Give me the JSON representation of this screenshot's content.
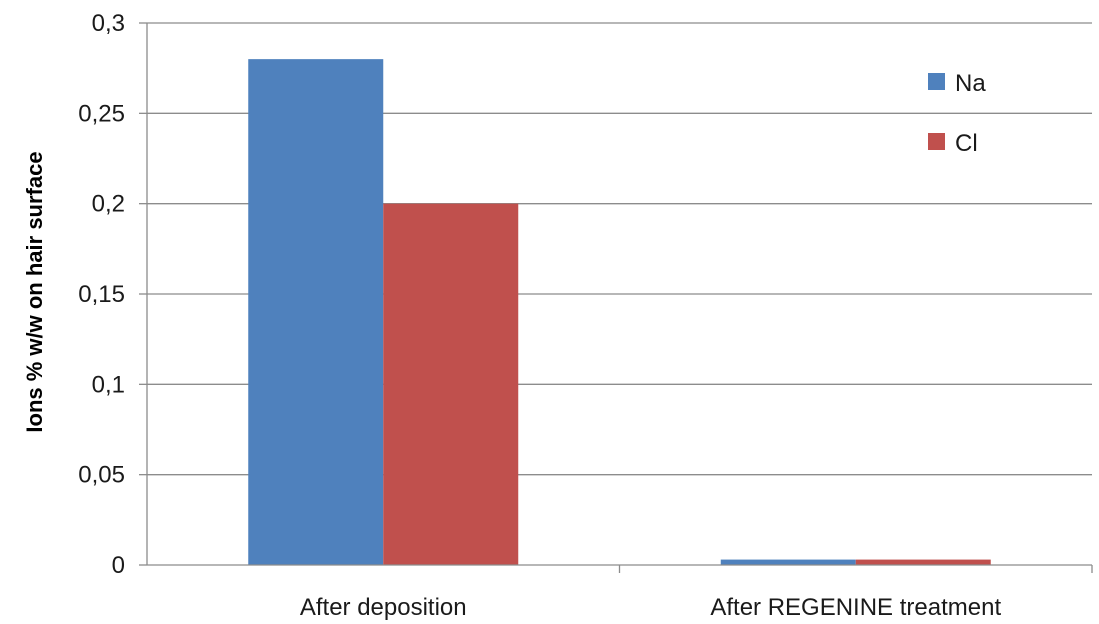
{
  "chart_data": {
    "type": "bar",
    "title": "",
    "xlabel": "",
    "ylabel": "Ions % w/w on hair surface",
    "categories": [
      "After deposition",
      "After REGENINE treatment"
    ],
    "series": [
      {
        "name": "Na",
        "color": "#4f81bd",
        "values": [
          0.28,
          0.003
        ]
      },
      {
        "name": "Cl",
        "color": "#c0504d",
        "values": [
          0.2,
          0.003
        ]
      }
    ],
    "ylim": [
      0,
      0.3
    ],
    "yticks": [
      0,
      0.05,
      0.1,
      0.15,
      0.2,
      0.25,
      0.3
    ],
    "ytick_labels": [
      "0",
      "0,05",
      "0,1",
      "0,15",
      "0,2",
      "0,25",
      "0,3"
    ],
    "grid": true,
    "legend_position": "top-right"
  }
}
